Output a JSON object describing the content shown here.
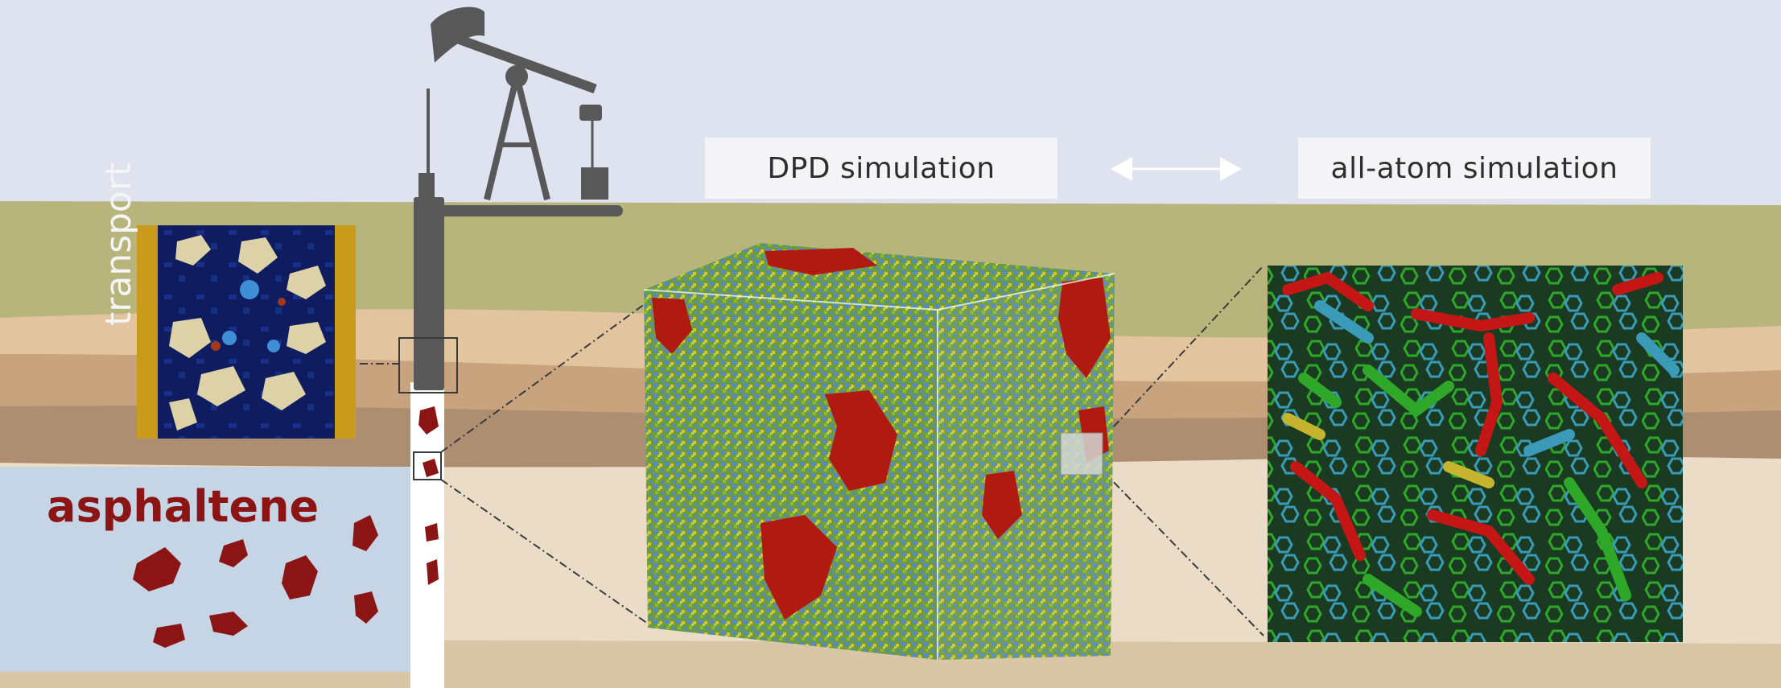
{
  "labels": {
    "dpd": "DPD simulation",
    "all_atom": "all-atom simulation",
    "asphaltene": "asphaltene",
    "transport": "transport"
  },
  "colors": {
    "sky": "#dfe3ef",
    "ground_olive": "#b8b57c",
    "layer_light": "#e7c9a4",
    "layer_mid": "#c9a27e",
    "layer_dark": "#ae8e70",
    "reservoir": "#c5d5e6",
    "sand": "#eadcc6",
    "asphaltene": "#8b1414",
    "pump": "#555555",
    "transport_bg": "#0f1d60",
    "dpd_red": "#b01a10",
    "dpd_green": "#7aa22a",
    "dpd_blue": "#5c86c0",
    "dpd_yellow": "#d6c43a",
    "atom_red": "#c51616",
    "atom_green": "#2fa82a",
    "atom_cyan": "#3a9ab8",
    "atom_yellow": "#c6b32e"
  },
  "icons": [
    "pumpjack-icon",
    "bidirectional-arrow-icon"
  ]
}
